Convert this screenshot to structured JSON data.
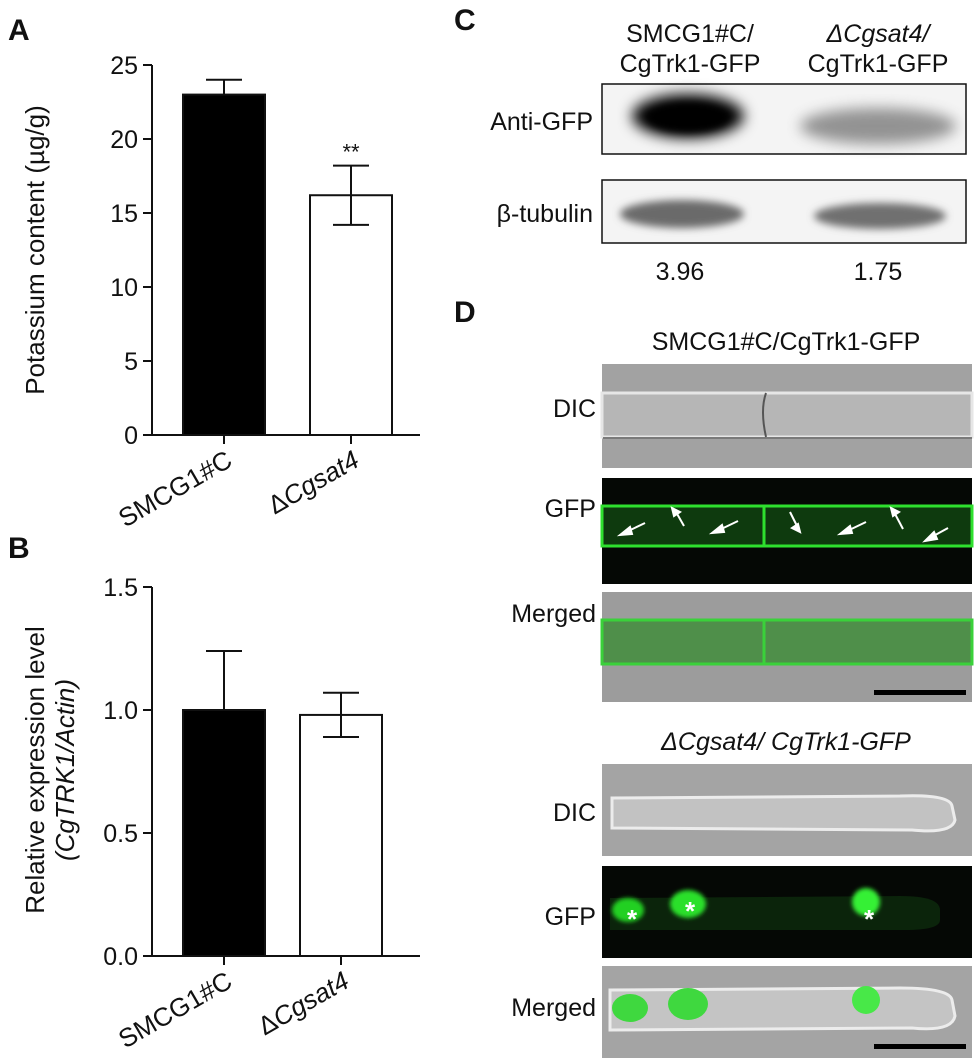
{
  "panels": {
    "A": {
      "letter": "A"
    },
    "B": {
      "letter": "B"
    },
    "C": {
      "letter": "C",
      "col1_line1": "SMCG1#C/",
      "col1_line2": "CgTrk1-GFP",
      "col2_line1": "ΔCgsat4/",
      "col2_line2": "CgTrk1-GFP",
      "row1": "Anti-GFP",
      "row2": "β-tubulin",
      "values": [
        "3.96",
        "1.75"
      ]
    },
    "D": {
      "letter": "D",
      "top_title": "SMCG1#C/CgTrk1-GFP",
      "bottom_title": "ΔCgsat4/ CgTrk1-GFP",
      "row_labels": [
        "DIC",
        "GFP",
        "Merged"
      ],
      "star": "*",
      "colors": {
        "gfp": "#22d022",
        "dic": "#a4a4a4",
        "dark": "#050805"
      }
    }
  },
  "chart_data": [
    {
      "type": "bar",
      "panel": "A",
      "categories": [
        "SMCG1#C",
        "ΔCgsat4"
      ],
      "values": [
        23.0,
        16.2
      ],
      "errors": [
        1.0,
        2.0
      ],
      "annotations": [
        "",
        "**"
      ],
      "fills": [
        "#000000",
        "#ffffff"
      ],
      "ylabel": "Potassium content (µg/g)",
      "ylim": [
        0,
        25
      ],
      "yticks": [
        0,
        5,
        10,
        15,
        20,
        25
      ],
      "grid": false
    },
    {
      "type": "bar",
      "panel": "B",
      "categories": [
        "SMCG1#C",
        "ΔCgsat4"
      ],
      "values": [
        1.0,
        0.98
      ],
      "errors": [
        0.24,
        0.09
      ],
      "fills": [
        "#000000",
        "#ffffff"
      ],
      "ylabel_line1": "Relative expression level",
      "ylabel_line2": "(CgTRK1/Actin)",
      "ylim": [
        0,
        1.5
      ],
      "yticks": [
        "0.0",
        "0.5",
        "1.0",
        "1.5"
      ],
      "grid": false
    }
  ]
}
